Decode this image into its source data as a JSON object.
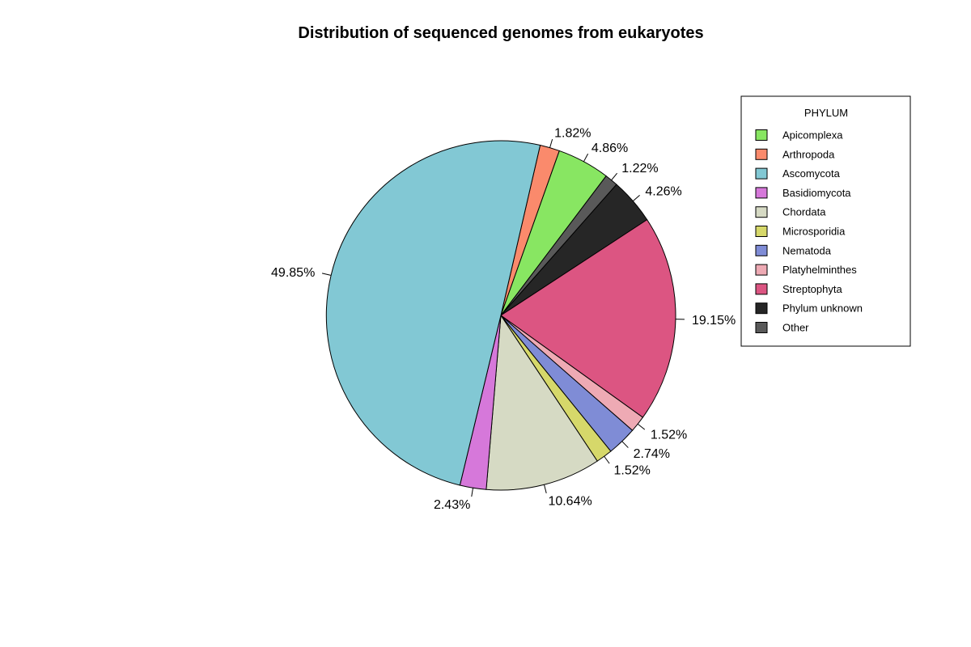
{
  "chart_data": {
    "type": "pie",
    "title": "Distribution of sequenced genomes from eukaryotes",
    "legend": {
      "title": "PHYLUM",
      "placement": "right",
      "entries": [
        {
          "label": "Apicomplexa",
          "color": "#88e662"
        },
        {
          "label": "Arthropoda",
          "color": "#fa8a6c"
        },
        {
          "label": "Ascomycota",
          "color": "#82c8d4"
        },
        {
          "label": "Basidiomycota",
          "color": "#d678da"
        },
        {
          "label": "Chordata",
          "color": "#d6dac4"
        },
        {
          "label": "Microsporidia",
          "color": "#d6d86a"
        },
        {
          "label": "Nematoda",
          "color": "#7f8cd6"
        },
        {
          "label": "Platyhelminthes",
          "color": "#eeaab4"
        },
        {
          "label": "Streptophyta",
          "color": "#dc5582"
        },
        {
          "label": "Phylum unknown",
          "color": "#262626"
        },
        {
          "label": "Other",
          "color": "#595959"
        }
      ]
    },
    "slices": [
      {
        "category": "Arthropoda",
        "value": 1.82,
        "label": "1.82%",
        "color": "#fa8a6c"
      },
      {
        "category": "Apicomplexa",
        "value": 4.86,
        "label": "4.86%",
        "color": "#88e662"
      },
      {
        "category": "Other",
        "value": 1.22,
        "label": "1.22%",
        "color": "#595959"
      },
      {
        "category": "Phylum unknown",
        "value": 4.26,
        "label": "4.26%",
        "color": "#262626"
      },
      {
        "category": "Streptophyta",
        "value": 19.15,
        "label": "19.15%",
        "color": "#dc5582"
      },
      {
        "category": "Platyhelminthes",
        "value": 1.52,
        "label": "1.52%",
        "color": "#eeaab4"
      },
      {
        "category": "Nematoda",
        "value": 2.74,
        "label": "2.74%",
        "color": "#7f8cd6"
      },
      {
        "category": "Microsporidia",
        "value": 1.52,
        "label": "1.52%",
        "color": "#d6d86a"
      },
      {
        "category": "Chordata",
        "value": 10.64,
        "label": "10.64%",
        "color": "#d6dac4"
      },
      {
        "category": "Basidiomycota",
        "value": 2.43,
        "label": "2.43%",
        "color": "#d678da"
      },
      {
        "category": "Ascomycota",
        "value": 49.85,
        "label": "49.85%",
        "color": "#82c8d4"
      }
    ]
  }
}
